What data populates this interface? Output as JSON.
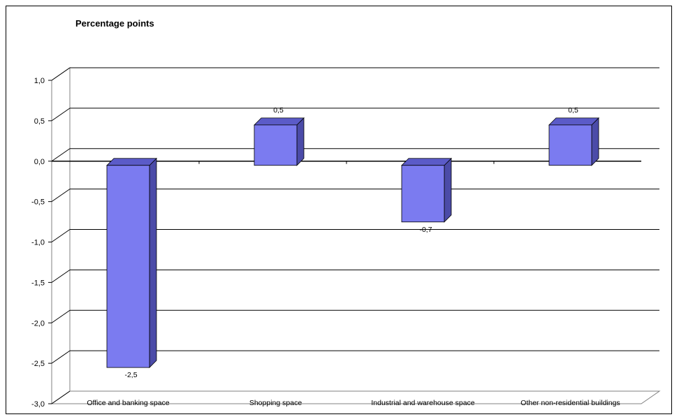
{
  "chart_data": {
    "type": "bar",
    "title": "Percentage points",
    "categories": [
      "Office and banking space",
      "Shopping space",
      "Industrial  and warehouse space",
      "Other non-residential buildings"
    ],
    "values": [
      -2.5,
      0.5,
      -0.7,
      0.5
    ],
    "data_labels": [
      "-2,5",
      "0,5",
      "-0,7",
      "0,5"
    ],
    "yticks": [
      "1,0",
      "0,5",
      "0,0",
      "-0,5",
      "-1,0",
      "-1,5",
      "-2,0",
      "-2,5",
      "-3,0"
    ],
    "ytick_values": [
      1.0,
      0.5,
      0.0,
      -0.5,
      -1.0,
      -1.5,
      -2.0,
      -2.5,
      -3.0
    ],
    "ylim": [
      -3.0,
      1.0
    ],
    "grid": true,
    "legend": false,
    "bar_color": "#7B7BF0",
    "bar_side_color": "#4B4BA8",
    "bar_top_color": "#5B5BC8"
  }
}
